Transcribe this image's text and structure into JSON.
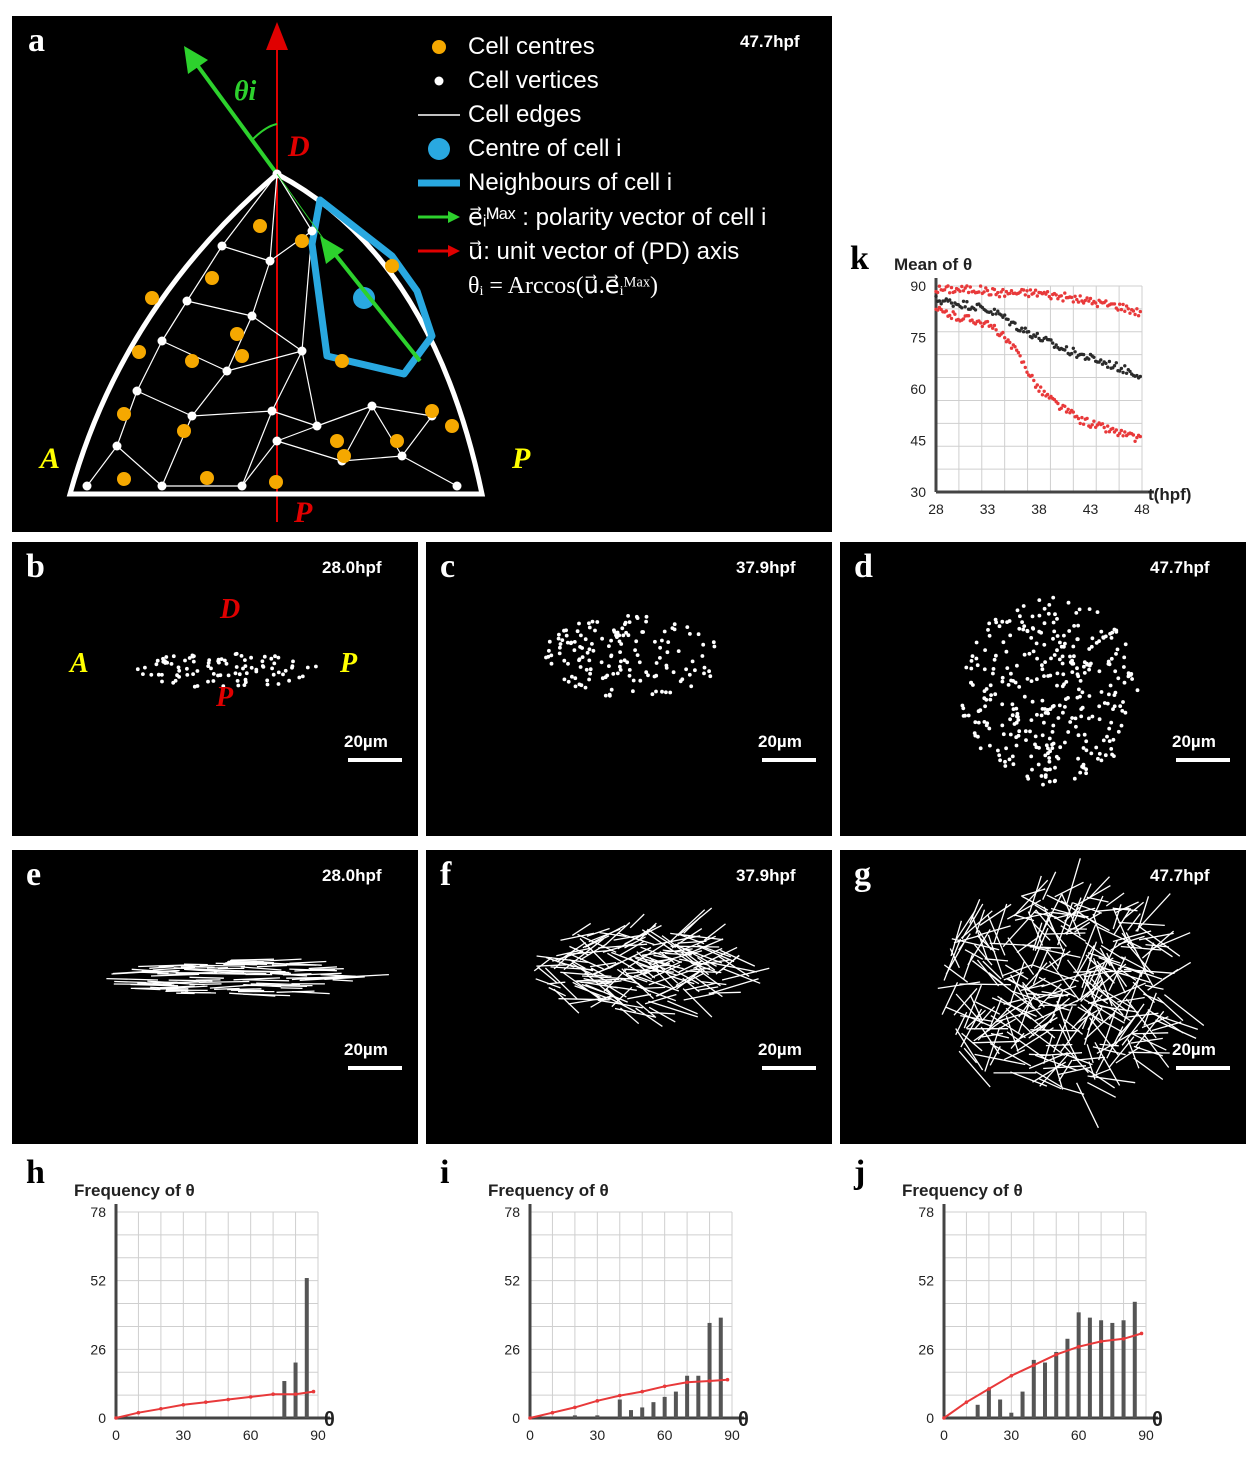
{
  "panel_a": {
    "label": "a",
    "time": "47.7hpf",
    "theta_label": "θi",
    "axis_labels": {
      "D": "D",
      "P_bottom": "P",
      "A": "A",
      "P_right": "P"
    },
    "legend": [
      {
        "text": "Cell centres",
        "swatch": "orange-dot"
      },
      {
        "text": "Cell vertices",
        "swatch": "white-dot"
      },
      {
        "text": "Cell edges",
        "swatch": "white-line"
      },
      {
        "text": "Centre of cell i",
        "swatch": "blue-dot"
      },
      {
        "text": "Neighbours of cell i",
        "swatch": "blue-line"
      },
      {
        "text": "e⃗ᵢᴹᵃˣ : polarity vector of cell i",
        "swatch": "green-arrow"
      },
      {
        "text": "u⃗: unit vector of (PD) axis",
        "swatch": "red-arrow"
      },
      {
        "text": "θᵢ = Arccos(u⃗.e⃗ᵢᴹᵃˣ)",
        "swatch": "none"
      }
    ],
    "colors": {
      "centre": "#f5a800",
      "vertex": "#ffffff",
      "neighbour": "#29a8e0",
      "polarity": "#2dd12d",
      "axis": "#e00000",
      "label_yellow": "#ffff00"
    }
  },
  "image_panels": [
    {
      "label": "b",
      "time": "28.0hpf",
      "scale": "20µm",
      "kind": "dots",
      "axis_labels": {
        "D": "D",
        "A": "A",
        "P_right": "P",
        "P_bottom": "P"
      }
    },
    {
      "label": "c",
      "time": "37.9hpf",
      "scale": "20µm",
      "kind": "dots"
    },
    {
      "label": "d",
      "time": "47.7hpf",
      "scale": "20µm",
      "kind": "dots"
    },
    {
      "label": "e",
      "time": "28.0hpf",
      "scale": "20µm",
      "kind": "lines"
    },
    {
      "label": "f",
      "time": "37.9hpf",
      "scale": "20µm",
      "kind": "lines"
    },
    {
      "label": "g",
      "time": "47.7hpf",
      "scale": "20µm",
      "kind": "lines"
    }
  ],
  "chart_data": [
    {
      "panel": "k",
      "type": "scatter",
      "title": "Mean of θ",
      "xlabel": "t(hpf)",
      "ylabel": "",
      "xlim": [
        28,
        48
      ],
      "ylim": [
        30,
        90
      ],
      "xticks": [
        "28",
        "33",
        "38",
        "43",
        "48"
      ],
      "yticks": [
        "30",
        "45",
        "60",
        "75",
        "90"
      ],
      "grid": true,
      "series": [
        {
          "color": "#e8393a",
          "x": [
            28,
            30,
            32,
            34,
            36,
            38,
            40,
            42,
            44,
            46,
            48
          ],
          "y": [
            89,
            89,
            89,
            88,
            88,
            88,
            87,
            86,
            85,
            84,
            82
          ]
        },
        {
          "color": "#2b2b2b",
          "x": [
            28,
            30,
            32,
            34,
            36,
            38,
            40,
            42,
            44,
            46,
            48
          ],
          "y": [
            86,
            85,
            84,
            82,
            78,
            75,
            72,
            70,
            68,
            66,
            64
          ]
        },
        {
          "color": "#e8393a",
          "x": [
            28,
            30,
            32,
            34,
            36,
            38,
            40,
            42,
            44,
            46,
            48
          ],
          "y": [
            83,
            81,
            80,
            77,
            70,
            60,
            55,
            51,
            49,
            47,
            45
          ]
        }
      ]
    },
    {
      "panel": "h",
      "type": "bar",
      "title": "Frequency of θ",
      "xlabel": "θ",
      "ylabel": "",
      "xlim": [
        0,
        90
      ],
      "ylim": [
        0,
        78
      ],
      "xticks": [
        "0",
        "30",
        "60",
        "90"
      ],
      "yticks": [
        "0",
        "26",
        "52",
        "78"
      ],
      "grid": true,
      "bars_x": [
        75,
        80,
        85
      ],
      "bars_y": [
        14,
        21,
        53
      ],
      "line_x": [
        0,
        10,
        20,
        30,
        40,
        50,
        60,
        70,
        80,
        88
      ],
      "line_y": [
        0,
        2,
        3.5,
        5,
        6,
        7,
        8,
        9,
        9,
        10
      ]
    },
    {
      "panel": "i",
      "type": "bar",
      "title": "Frequency of θ",
      "xlabel": "θ",
      "ylabel": "",
      "xlim": [
        0,
        90
      ],
      "ylim": [
        0,
        78
      ],
      "xticks": [
        "0",
        "30",
        "60",
        "90"
      ],
      "yticks": [
        "0",
        "26",
        "52",
        "78"
      ],
      "grid": true,
      "bars_x": [
        20,
        30,
        40,
        45,
        50,
        55,
        60,
        65,
        70,
        75,
        80,
        85
      ],
      "bars_y": [
        1,
        1,
        7,
        3,
        4,
        6,
        8,
        10,
        16,
        16,
        36,
        38
      ],
      "line_x": [
        0,
        10,
        20,
        30,
        40,
        50,
        60,
        70,
        80,
        88
      ],
      "line_y": [
        0,
        2,
        4,
        6.5,
        8.5,
        10,
        12,
        13.5,
        14,
        14.5
      ]
    },
    {
      "panel": "j",
      "type": "bar",
      "title": "Frequency of θ",
      "xlabel": "θ",
      "ylabel": "",
      "xlim": [
        0,
        90
      ],
      "ylim": [
        0,
        78
      ],
      "xticks": [
        "0",
        "30",
        "60",
        "90"
      ],
      "yticks": [
        "0",
        "26",
        "52",
        "78"
      ],
      "grid": true,
      "bars_x": [
        15,
        20,
        25,
        30,
        35,
        40,
        45,
        50,
        55,
        60,
        65,
        70,
        75,
        80,
        85
      ],
      "bars_y": [
        5,
        11,
        7,
        2,
        10,
        22,
        21,
        25,
        30,
        40,
        38,
        37,
        36,
        37,
        44
      ],
      "line_x": [
        0,
        10,
        20,
        30,
        40,
        50,
        60,
        70,
        80,
        88
      ],
      "line_y": [
        0,
        6,
        11,
        16,
        20,
        24,
        27,
        29,
        30,
        32
      ]
    }
  ]
}
